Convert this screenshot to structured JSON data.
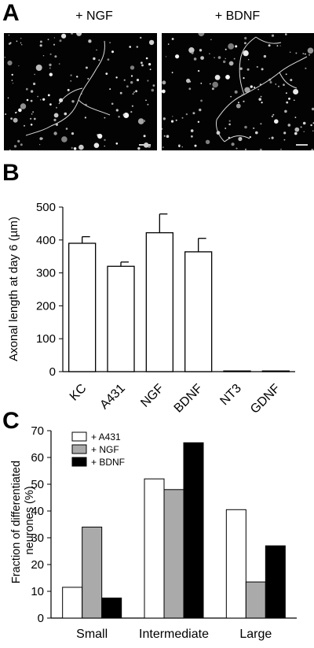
{
  "panels": {
    "a": {
      "letter": "A"
    },
    "b": {
      "letter": "B"
    },
    "c": {
      "letter": "C"
    }
  },
  "images": [
    {
      "title": "+ NGF"
    },
    {
      "title": "+ BDNF"
    }
  ],
  "chart_data": [
    {
      "type": "bar",
      "panel": "B",
      "categories": [
        "KC",
        "A431",
        "NGF",
        "BDNF",
        "NT3",
        "GDNF"
      ],
      "values": [
        390,
        320,
        422,
        364,
        2,
        2
      ],
      "errors": [
        20,
        13,
        57,
        41,
        0,
        0
      ],
      "xlabel": "",
      "ylabel": "Axonal length at day 6 (µm)",
      "ylim": [
        0,
        500
      ],
      "yticks": [
        0,
        100,
        200,
        300,
        400,
        500
      ],
      "bar_color": "#ffffff",
      "grid": false
    },
    {
      "type": "bar",
      "panel": "C",
      "categories": [
        "Small",
        "Intermediate",
        "Large"
      ],
      "series": [
        {
          "name": "+ A431",
          "values": [
            11.5,
            52,
            40.5
          ],
          "color": "#ffffff"
        },
        {
          "name": "+ NGF",
          "values": [
            34,
            48,
            13.5
          ],
          "color": "#aaaaaa"
        },
        {
          "name": "+ BDNF",
          "values": [
            7.5,
            65.5,
            27
          ],
          "color": "#000000"
        }
      ],
      "xlabel": "",
      "ylabel": "Fraction of differentiated neurones (%)",
      "ylim": [
        0,
        70
      ],
      "yticks": [
        0,
        10,
        20,
        30,
        40,
        50,
        60,
        70
      ],
      "legend": "top-left",
      "grid": false
    }
  ]
}
